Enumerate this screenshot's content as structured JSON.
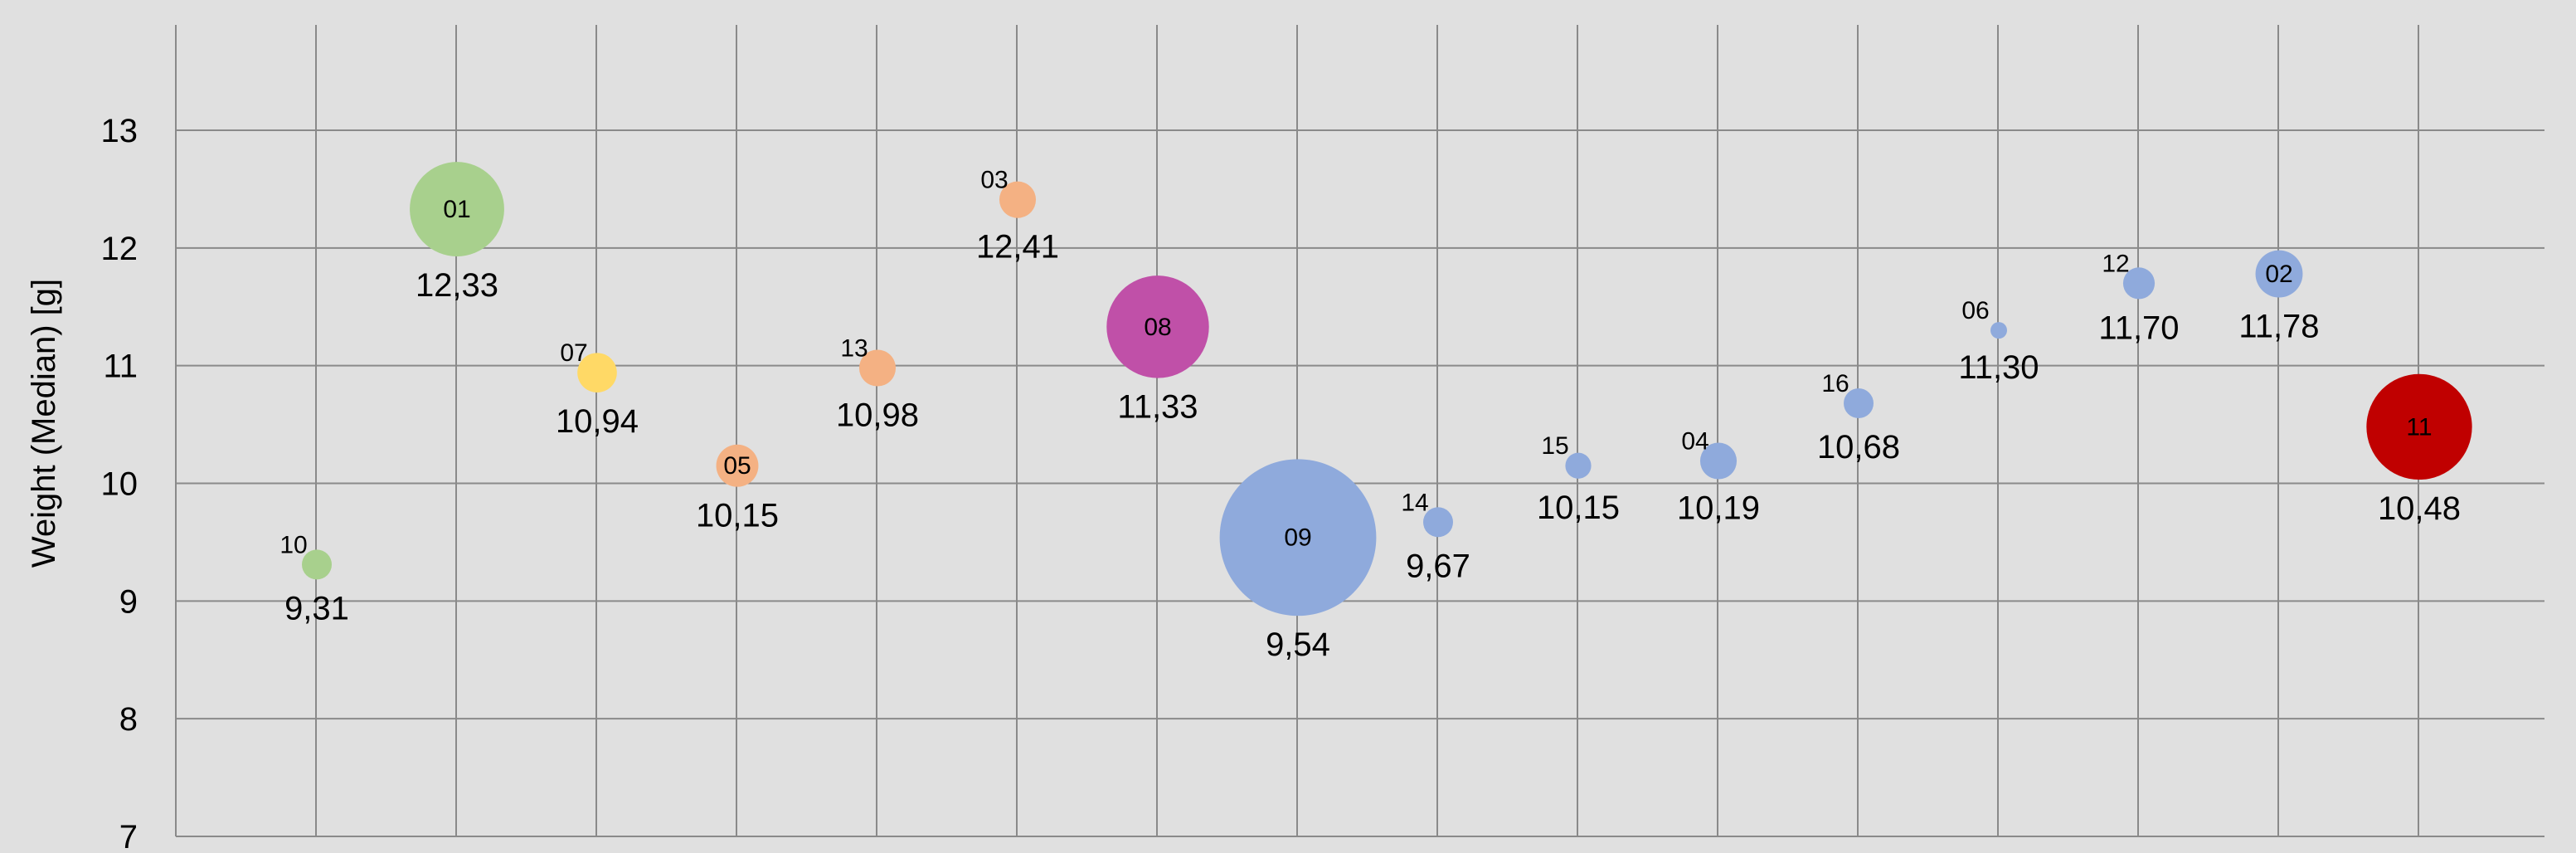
{
  "chart_data": {
    "type": "scatter",
    "subtype": "bubble",
    "ylabel": "Weight (Median) [g]",
    "xlabel": "",
    "title": "",
    "ylim": [
      7,
      13.9
    ],
    "yticks": [
      7,
      8,
      9,
      10,
      11,
      12,
      13
    ],
    "grid": true,
    "points": [
      {
        "id": "10",
        "x": 1,
        "y": 9.31,
        "label": "9,31",
        "size": 4,
        "color": "#a8d08d"
      },
      {
        "id": "01",
        "x": 2,
        "y": 12.33,
        "label": "12,33",
        "size": 40,
        "color": "#a8d08d"
      },
      {
        "id": "07",
        "x": 3,
        "y": 10.94,
        "label": "10,94",
        "size": 7,
        "color": "#ffd966"
      },
      {
        "id": "05",
        "x": 4,
        "y": 10.15,
        "label": "10,15",
        "size": 8,
        "color": "#f4b183"
      },
      {
        "id": "13",
        "x": 5,
        "y": 10.98,
        "label": "10,98",
        "size": 6,
        "color": "#f4b183"
      },
      {
        "id": "03",
        "x": 6,
        "y": 12.41,
        "label": "12,41",
        "size": 6,
        "color": "#f4b183"
      },
      {
        "id": "08",
        "x": 7,
        "y": 11.33,
        "label": "11,33",
        "size": 47,
        "color": "#c050a8"
      },
      {
        "id": "09",
        "x": 8,
        "y": 9.54,
        "label": "9,54",
        "size": 110,
        "color": "#8faadc"
      },
      {
        "id": "14",
        "x": 9,
        "y": 9.67,
        "label": "9,67",
        "size": 4,
        "color": "#8faadc"
      },
      {
        "id": "15",
        "x": 10,
        "y": 10.15,
        "label": "10,15",
        "size": 3,
        "color": "#8faadc"
      },
      {
        "id": "04",
        "x": 11,
        "y": 10.19,
        "label": "10,19",
        "size": 6,
        "color": "#8faadc"
      },
      {
        "id": "16",
        "x": 12,
        "y": 10.68,
        "label": "10,68",
        "size": 4,
        "color": "#8faadc"
      },
      {
        "id": "06",
        "x": 13,
        "y": 11.3,
        "label": "11,30",
        "size": 0.8,
        "color": "#8faadc"
      },
      {
        "id": "12",
        "x": 14,
        "y": 11.7,
        "label": "11,70",
        "size": 4.5,
        "color": "#8faadc"
      },
      {
        "id": "02",
        "x": 15,
        "y": 11.78,
        "label": "11,78",
        "size": 10,
        "color": "#8faadc"
      },
      {
        "id": "11",
        "x": 16,
        "y": 10.48,
        "label": "10,48",
        "size": 50,
        "color": "#c00000"
      }
    ]
  }
}
